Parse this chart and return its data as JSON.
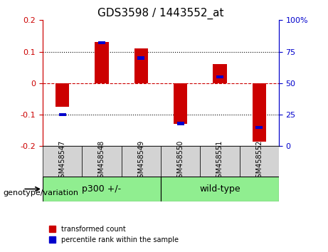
{
  "title": "GDS3598 / 1443552_at",
  "samples": [
    "GSM458547",
    "GSM458548",
    "GSM458549",
    "GSM458550",
    "GSM458551",
    "GSM458552"
  ],
  "red_values": [
    -0.075,
    0.13,
    0.11,
    -0.13,
    0.06,
    -0.185
  ],
  "blue_values_pct": [
    25,
    82,
    70,
    18,
    55,
    15
  ],
  "groups": [
    {
      "label": "p300 +/-",
      "start": 0,
      "end": 3,
      "color": "#90EE90"
    },
    {
      "label": "wild-type",
      "start": 3,
      "end": 6,
      "color": "#90EE90"
    }
  ],
  "ylim_left": [
    -0.2,
    0.2
  ],
  "ylim_right": [
    0,
    100
  ],
  "yticks_left": [
    -0.2,
    -0.1,
    0,
    0.1,
    0.2
  ],
  "yticks_right": [
    0,
    25,
    50,
    75,
    100
  ],
  "ytick_labels_right": [
    "0",
    "25",
    "50",
    "75",
    "100%"
  ],
  "red_color": "#CC0000",
  "blue_color": "#0000CC",
  "bar_width": 0.35,
  "blue_bar_width": 0.18,
  "legend_items": [
    "transformed count",
    "percentile rank within the sample"
  ],
  "group_label": "genotype/variation"
}
